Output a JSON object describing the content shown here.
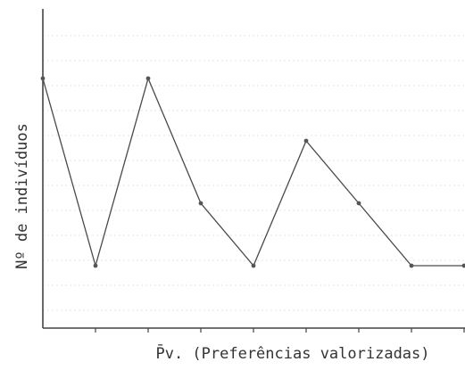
{
  "chart_data": {
    "type": "line",
    "xlabel": "P̄v. (Preferências valorizadas)",
    "ylabel": "Nº de indivíduos",
    "x": [
      1,
      2,
      3,
      4,
      5,
      6,
      7,
      8,
      9
    ],
    "y": [
      8,
      2,
      8,
      4,
      2,
      6,
      4,
      2,
      2
    ],
    "xlim": [
      1,
      9
    ],
    "ylim": [
      0,
      9
    ],
    "grid": true,
    "colors": {
      "line": "#4a4a4a",
      "axis": "#444444"
    }
  }
}
